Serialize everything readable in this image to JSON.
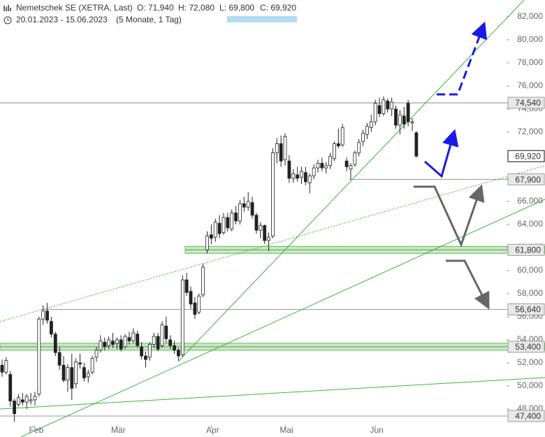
{
  "chart_data": {
    "type": "candlestick",
    "header": {
      "title": "Nemetschek SE (XETRA, Last)",
      "ohlc": [
        "O: 71,940",
        "H: 72,080",
        "L: 69,800",
        "C: 69,920"
      ],
      "range": "20.01.2023 - 15.06.2023",
      "period": "(5 Monate, 1 Tag)"
    },
    "categories": [
      null,
      null,
      null,
      null,
      null,
      null,
      null,
      null,
      "Feb",
      null,
      null,
      null,
      null,
      null,
      null,
      null,
      null,
      null,
      null,
      null,
      null,
      null,
      null,
      null,
      null,
      null,
      null,
      null,
      "Mär",
      null,
      null,
      null,
      null,
      null,
      null,
      null,
      null,
      null,
      null,
      null,
      null,
      null,
      null,
      null,
      null,
      null,
      null,
      null,
      null,
      null,
      null,
      "Apr",
      null,
      null,
      null,
      null,
      null,
      null,
      null,
      null,
      null,
      null,
      null,
      null,
      null,
      null,
      null,
      null,
      null,
      "Mai",
      null,
      null,
      null,
      null,
      null,
      null,
      null,
      null,
      null,
      null,
      null,
      null,
      null,
      null,
      null,
      null,
      null,
      null,
      null,
      null,
      null,
      "Jun",
      null,
      null,
      null,
      null,
      null,
      null,
      null,
      null,
      null,
      null
    ],
    "candles": [
      [
        51800,
        52300,
        50800,
        51200
      ],
      [
        51200,
        52500,
        51000,
        52200
      ],
      [
        51000,
        51300,
        48200,
        48700
      ],
      [
        48700,
        48900,
        46900,
        47600
      ],
      [
        48400,
        49300,
        48200,
        49000
      ],
      [
        48800,
        49400,
        48300,
        48600
      ],
      [
        48600,
        49300,
        48000,
        49100
      ],
      [
        48700,
        49400,
        48400,
        48800
      ],
      [
        48800,
        49500,
        48300,
        49100
      ],
      [
        49300,
        56000,
        49100,
        55800
      ],
      [
        55800,
        57000,
        55300,
        56500
      ],
      [
        56500,
        57200,
        55400,
        55700
      ],
      [
        55600,
        56000,
        54200,
        54500
      ],
      [
        54500,
        54700,
        52600,
        52900
      ],
      [
        52900,
        53400,
        51400,
        51800
      ],
      [
        51800,
        52600,
        50300,
        50500
      ],
      [
        50500,
        51900,
        49500,
        51600
      ],
      [
        51600,
        52800,
        48800,
        49800
      ],
      [
        50200,
        52400,
        49800,
        52100
      ],
      [
        52000,
        52800,
        51500,
        51900
      ],
      [
        51600,
        52000,
        50400,
        50700
      ],
      [
        50800,
        51400,
        50300,
        51100
      ],
      [
        51200,
        52600,
        51000,
        52400
      ],
      [
        52500,
        53400,
        52100,
        53100
      ],
      [
        53100,
        54400,
        52900,
        53900
      ],
      [
        53800,
        54200,
        53100,
        53400
      ],
      [
        53500,
        54300,
        53200,
        54000
      ],
      [
        53900,
        54600,
        53300,
        53600
      ],
      [
        53700,
        54200,
        53200,
        54000
      ],
      [
        54000,
        54400,
        53000,
        53200
      ],
      [
        53400,
        54500,
        53200,
        54300
      ],
      [
        54200,
        54700,
        53600,
        53900
      ],
      [
        53900,
        55000,
        53700,
        54600
      ],
      [
        54500,
        54800,
        53300,
        53500
      ],
      [
        53400,
        53800,
        52300,
        52600
      ],
      [
        52600,
        53000,
        51600,
        52300
      ],
      [
        52500,
        53800,
        52200,
        53600
      ],
      [
        53600,
        54600,
        53300,
        54300
      ],
      [
        54300,
        54600,
        53000,
        53200
      ],
      [
        53500,
        55600,
        53300,
        55300
      ],
      [
        55200,
        56000,
        53700,
        54100
      ],
      [
        54000,
        54400,
        53200,
        53500
      ],
      [
        53500,
        53900,
        52800,
        53100
      ],
      [
        53100,
        53300,
        52200,
        52600
      ],
      [
        52700,
        59600,
        52500,
        59200
      ],
      [
        59200,
        59800,
        57800,
        58100
      ],
      [
        58200,
        58600,
        56700,
        57100
      ],
      [
        57200,
        57700,
        55800,
        56200
      ],
      [
        56400,
        58000,
        56200,
        57800
      ],
      [
        57900,
        60600,
        57700,
        60300
      ],
      [
        61800,
        63400,
        61500,
        63000
      ],
      [
        63100,
        64000,
        62300,
        62800
      ],
      [
        62900,
        64500,
        62500,
        64200
      ],
      [
        64100,
        64800,
        62800,
        63200
      ],
      [
        63300,
        65000,
        63100,
        64600
      ],
      [
        64600,
        65000,
        63400,
        63700
      ],
      [
        63600,
        65300,
        63400,
        65000
      ],
      [
        65000,
        65600,
        64000,
        64300
      ],
      [
        64300,
        66100,
        64000,
        65800
      ],
      [
        65800,
        66400,
        65100,
        65500
      ],
      [
        65500,
        66800,
        65200,
        66000
      ],
      [
        65900,
        66400,
        64500,
        64800
      ],
      [
        64800,
        65000,
        63200,
        63500
      ],
      [
        63500,
        64200,
        62800,
        63900
      ],
      [
        63900,
        64000,
        62300,
        62600
      ],
      [
        62600,
        63300,
        61700,
        62900
      ],
      [
        63000,
        70600,
        62800,
        70200
      ],
      [
        70200,
        71500,
        69300,
        71000
      ],
      [
        71000,
        71700,
        69000,
        69500
      ],
      [
        69600,
        71900,
        69100,
        71600
      ],
      [
        69500,
        70000,
        67600,
        68000
      ],
      [
        68000,
        68800,
        67600,
        68400
      ],
      [
        68300,
        69000,
        67700,
        68000
      ],
      [
        68100,
        69000,
        67500,
        68600
      ],
      [
        68500,
        69000,
        67400,
        67700
      ],
      [
        67600,
        68400,
        66700,
        68200
      ],
      [
        68200,
        69200,
        67900,
        68900
      ],
      [
        68900,
        69600,
        68500,
        69300
      ],
      [
        69300,
        69800,
        68600,
        68900
      ],
      [
        68900,
        69400,
        68400,
        69100
      ],
      [
        69100,
        70200,
        68800,
        69900
      ],
      [
        69700,
        71200,
        69500,
        71000
      ],
      [
        71000,
        72300,
        70600,
        70800
      ],
      [
        70900,
        72700,
        70700,
        72400
      ],
      [
        69500,
        69800,
        68600,
        69000
      ],
      [
        68800,
        69300,
        67900,
        69100
      ],
      [
        69200,
        70400,
        69000,
        70200
      ],
      [
        70200,
        71400,
        69900,
        71100
      ],
      [
        71200,
        72200,
        70800,
        71900
      ],
      [
        71800,
        72800,
        71400,
        72500
      ],
      [
        72400,
        73500,
        72000,
        72900
      ],
      [
        72900,
        74800,
        72600,
        74500
      ],
      [
        74300,
        75000,
        73300,
        73600
      ],
      [
        73600,
        75100,
        73400,
        74800
      ],
      [
        74700,
        74900,
        73700,
        74000
      ],
      [
        74000,
        75000,
        73400,
        74600
      ],
      [
        74000,
        74300,
        72300,
        72600
      ],
      [
        72600,
        73900,
        71800,
        73500
      ],
      [
        73400,
        74200,
        72300,
        72700
      ],
      [
        74500,
        74800,
        72500,
        72900
      ],
      [
        72800,
        73200,
        72100,
        72900
      ],
      [
        71940,
        72080,
        69800,
        69920
      ]
    ],
    "ylim": [
      45580,
      83450
    ],
    "yticks": [
      {
        "value": 48000,
        "label": "48,000"
      },
      {
        "value": 50000,
        "label": "50,000"
      },
      {
        "value": 52000,
        "label": "52,000"
      },
      {
        "value": 54000,
        "label": "54,000"
      },
      {
        "value": 56000,
        "label": "56,000"
      },
      {
        "value": 58000,
        "label": "58,000"
      },
      {
        "value": 60000,
        "label": "60,000"
      },
      {
        "value": 62000,
        "label": "62,000"
      },
      {
        "value": 64000,
        "label": "64,000"
      },
      {
        "value": 66000,
        "label": "66,000"
      },
      {
        "value": 68000,
        "label": "68,000"
      },
      {
        "value": 70000,
        "label": "70,000"
      },
      {
        "value": 72000,
        "label": "72,000"
      },
      {
        "value": 74000,
        "label": "74,000"
      },
      {
        "value": 76000,
        "label": "76,000"
      },
      {
        "value": 78000,
        "label": "78,000"
      },
      {
        "value": 80000,
        "label": "80,000"
      },
      {
        "value": 82000,
        "label": "82,000"
      }
    ],
    "levels": [
      {
        "value": 74540,
        "label": "74,540",
        "zone": false
      },
      {
        "value": 67900,
        "label": "67,900",
        "zone": false
      },
      {
        "value": 61800,
        "label": "61,800",
        "zone": true
      },
      {
        "value": 56640,
        "label": "56,640",
        "zone": false
      },
      {
        "value": 53400,
        "label": "53,400",
        "zone": true
      },
      {
        "value": 47400,
        "label": "47,400",
        "zone": false
      }
    ],
    "last_price": {
      "value": 69920,
      "label": "69,920"
    }
  }
}
